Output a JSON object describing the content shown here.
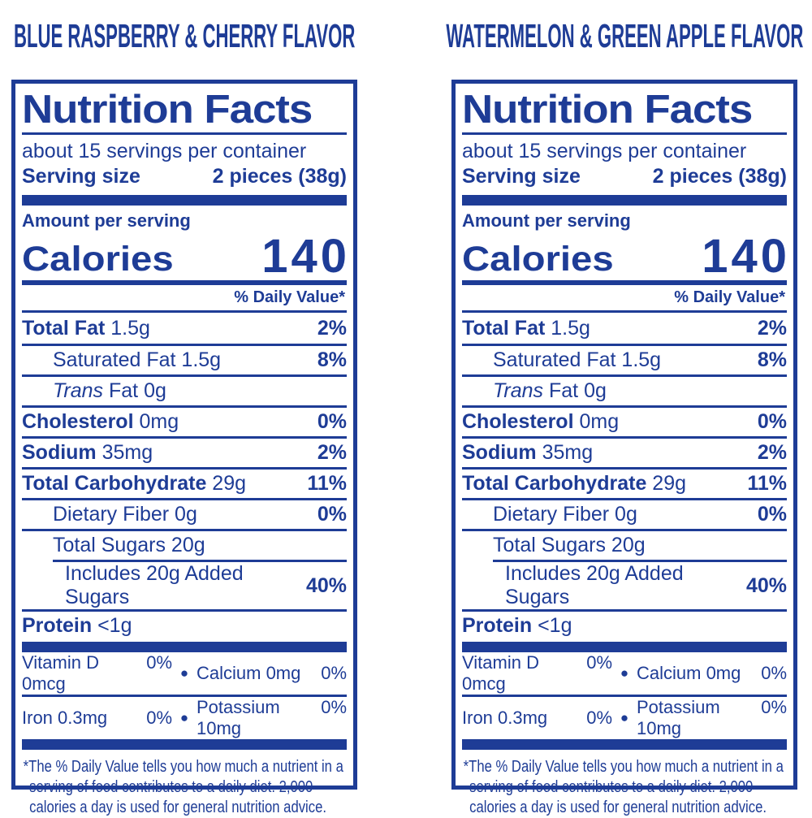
{
  "colors": {
    "accent_blue": "#1e3c96",
    "background": "#ffffff"
  },
  "headers": {
    "left": "BLUE RASPBERRY & CHERRY FLAVOR",
    "right": "WATERMELON & GREEN APPLE FLAVOR"
  },
  "nutrition": {
    "title": "Nutrition Facts",
    "servings_per_container": "about 15 servings per container",
    "serving_size_label": "Serving size",
    "serving_size_value": "2 pieces (38g)",
    "amount_per_serving": "Amount per serving",
    "calories_label": "Calories",
    "calories_value": "140",
    "daily_value_header": "% Daily Value*",
    "rows": [
      {
        "bold": "Total Fat",
        "regular": " 1.5g",
        "pct": "2%"
      },
      {
        "regular": "Saturated Fat 1.5g",
        "pct": "8%"
      },
      {
        "italic": "Trans",
        "regular": " Fat 0g",
        "pct": ""
      },
      {
        "bold": "Cholesterol",
        "regular": " 0mg",
        "pct": "0%"
      },
      {
        "bold": "Sodium",
        "regular": " 35mg",
        "pct": "2%"
      },
      {
        "bold": "Total Carbohydrate",
        "regular": " 29g",
        "pct": "11%"
      },
      {
        "regular": "Dietary Fiber 0g",
        "pct": "0%"
      },
      {
        "regular": "Total Sugars 20g",
        "pct": ""
      },
      {
        "regular": "Includes 20g Added Sugars",
        "pct": "40%"
      },
      {
        "bold": "Protein",
        "regular": " <1g",
        "pct": ""
      }
    ],
    "micronutrients": [
      {
        "left_name": "Vitamin D 0mcg",
        "left_pct": "0%",
        "right_name": "Calcium 0mg",
        "right_pct": "0%"
      },
      {
        "left_name": "Iron 0.3mg",
        "left_pct": "0%",
        "right_name": "Potassium 10mg",
        "right_pct": "0%"
      }
    ],
    "bullet": "●",
    "footnote": "*The % Daily Value tells you how much a nutrient in a serving of food contributes to a daily diet. 2,000 calories a day is used for general nutrition advice."
  }
}
